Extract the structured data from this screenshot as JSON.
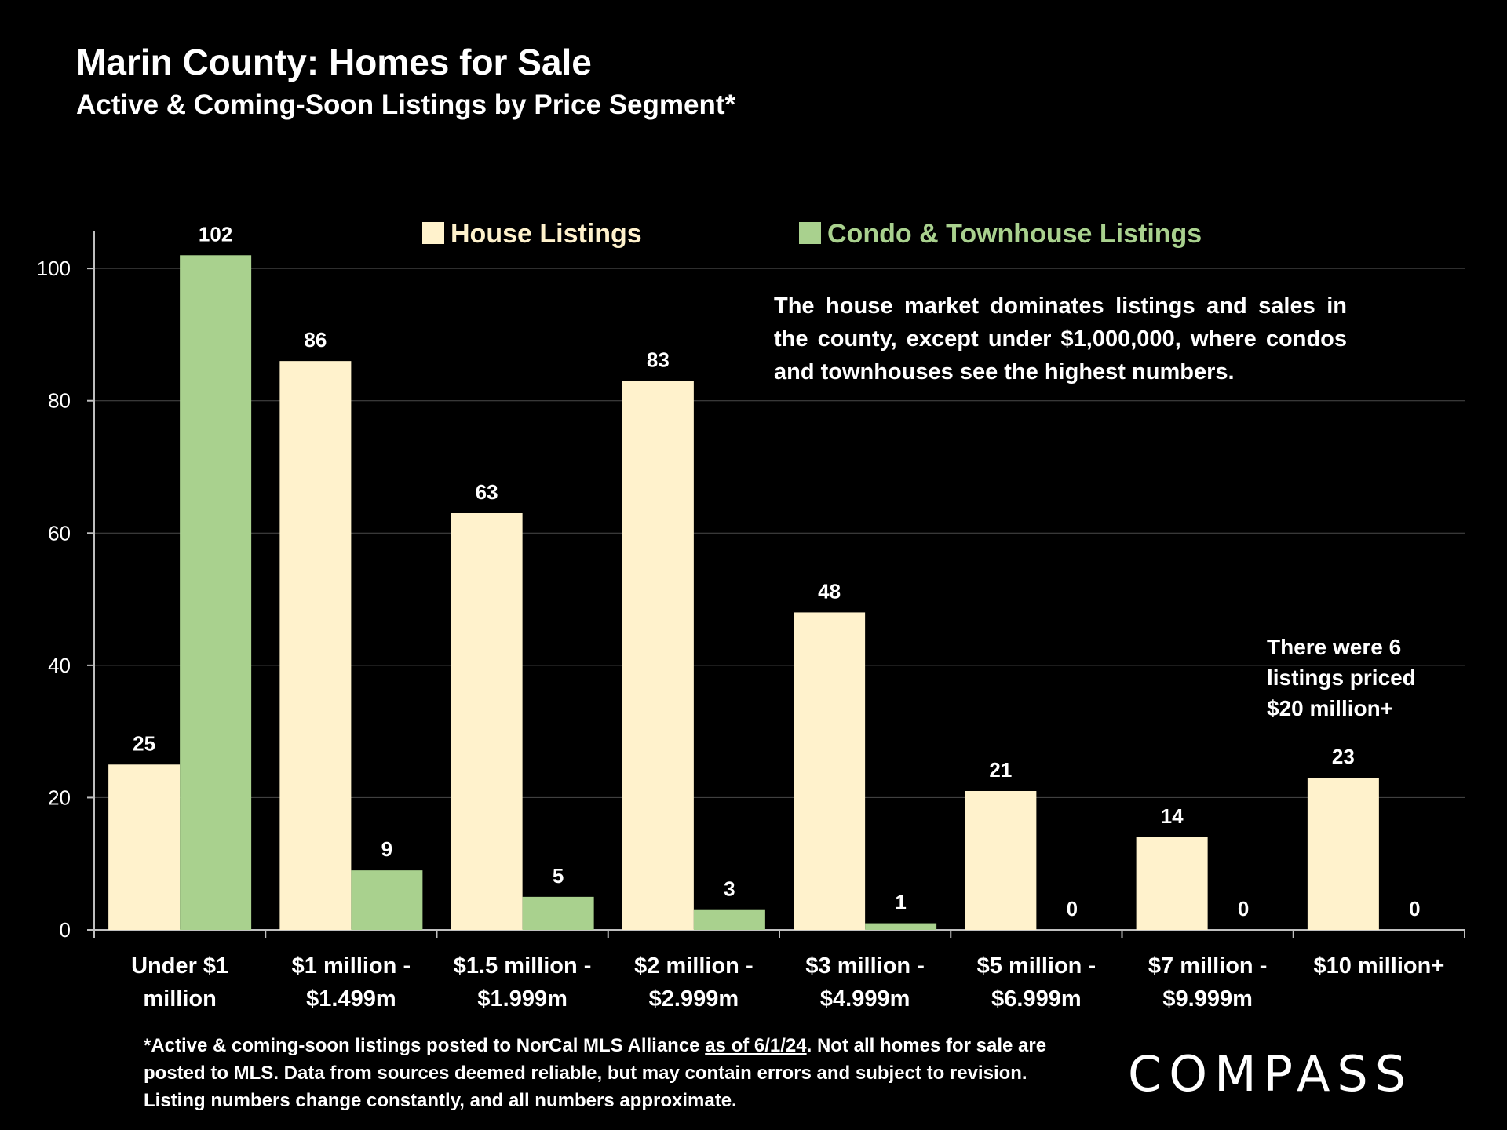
{
  "chart_data": {
    "type": "bar",
    "title": "Marin County: Homes for Sale",
    "subtitle": "Active & Coming-Soon Listings by Price Segment*",
    "categories": [
      [
        "Under $1",
        "million"
      ],
      [
        "$1 million -",
        "$1.499m"
      ],
      [
        "$1.5 million -",
        "$1.999m"
      ],
      [
        "$2 million -",
        "$2.999m"
      ],
      [
        "$3 million -",
        "$4.999m"
      ],
      [
        "$5 million -",
        "$6.999m"
      ],
      [
        "$7 million -",
        "$9.999m"
      ],
      [
        "$10 million+"
      ]
    ],
    "series": [
      {
        "name": "House Listings",
        "color": "#FFF2CC",
        "values": [
          25,
          86,
          63,
          83,
          48,
          21,
          14,
          23
        ]
      },
      {
        "name": "Condo & Townhouse Listings",
        "color": "#A9D18E",
        "values": [
          102,
          9,
          5,
          3,
          1,
          0,
          0,
          0
        ]
      }
    ],
    "ylim": [
      0,
      105
    ],
    "yticks": [
      0,
      20,
      40,
      60,
      80,
      100
    ],
    "grid": true,
    "legend_position": "top"
  },
  "annotations": {
    "main": "The house market dominates listings and sales in the county, except under $1,000,000, where condos and townhouses see the highest numbers.",
    "top_segment": "There were 6 listings priced $20 million+"
  },
  "footnote": {
    "part1": "*Active & coming-soon listings posted to NorCal MLS Alliance ",
    "date": "as of 6/1/24",
    "part2": ". Not all homes for sale are posted to MLS. Data from sources deemed reliable, but may contain errors and subject to revision. Listing numbers change constantly, and all numbers approximate."
  },
  "brand": {
    "name": "COMPASS"
  }
}
